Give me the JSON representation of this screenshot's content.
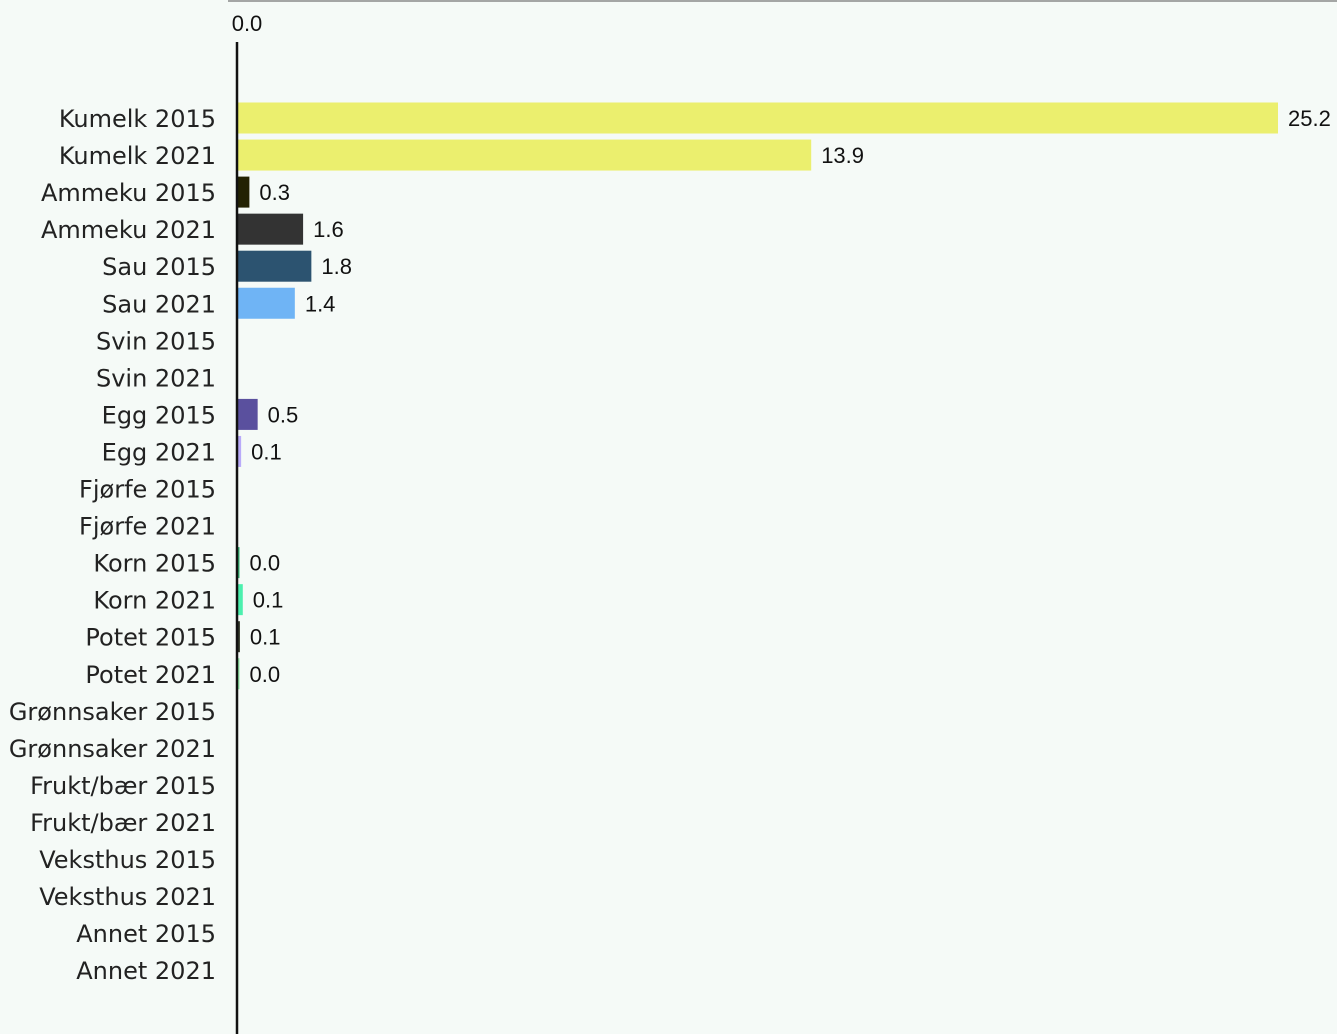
{
  "chart_data": {
    "type": "bar",
    "orientation": "horizontal",
    "title": "",
    "xlabel": "",
    "ylabel": "",
    "xlim": [
      0,
      25.2
    ],
    "top_axis_tick": "0.0",
    "grid": false,
    "legend": false,
    "categories": [
      "Kumelk 2015",
      "Kumelk 2021",
      "Ammeku 2015",
      "Ammeku 2021",
      "Sau 2015",
      "Sau 2021",
      "Svin 2015",
      "Svin 2021",
      "Egg 2015",
      "Egg 2021",
      "Fjørfe 2015",
      "Fjørfe 2021",
      "Korn 2015",
      "Korn 2021",
      "Potet 2015",
      "Potet 2021",
      "Grønnsaker 2015",
      "Grønnsaker 2021",
      "Frukt/bær 2015",
      "Frukt/bær 2021",
      "Veksthus 2015",
      "Veksthus 2021",
      "Annet 2015",
      "Annet 2021"
    ],
    "values": [
      25.2,
      13.9,
      0.3,
      1.6,
      1.8,
      1.4,
      null,
      null,
      0.5,
      0.1,
      null,
      null,
      0.04,
      0.14,
      0.07,
      0.03,
      null,
      null,
      null,
      null,
      null,
      null,
      null,
      null
    ],
    "value_labels": [
      "25.2",
      "13.9",
      "0.3",
      "1.6",
      "1.8",
      "1.4",
      "",
      "",
      "0.5",
      "0.1",
      "",
      "",
      "0.0",
      "0.1",
      "0.1",
      "0.0",
      "",
      "",
      "",
      "",
      "",
      "",
      "",
      ""
    ],
    "colors": [
      "#ebef6e",
      "#ebef6e",
      "#232203",
      "#333333",
      "#2c5370",
      "#6fb4f5",
      "#dddddd",
      "#dddddd",
      "#5a509e",
      "#b9aaf9",
      "#dddddd",
      "#dddddd",
      "#2eae6e",
      "#4cf0ae",
      "#2a3022",
      "#8ee8a4",
      "#dddddd",
      "#dddddd",
      "#dddddd",
      "#dddddd",
      "#dddddd",
      "#dddddd",
      "#dddddd",
      "#dddddd"
    ],
    "colors_important": {
      "background": "#f5faf7",
      "axis": "#111111"
    }
  }
}
